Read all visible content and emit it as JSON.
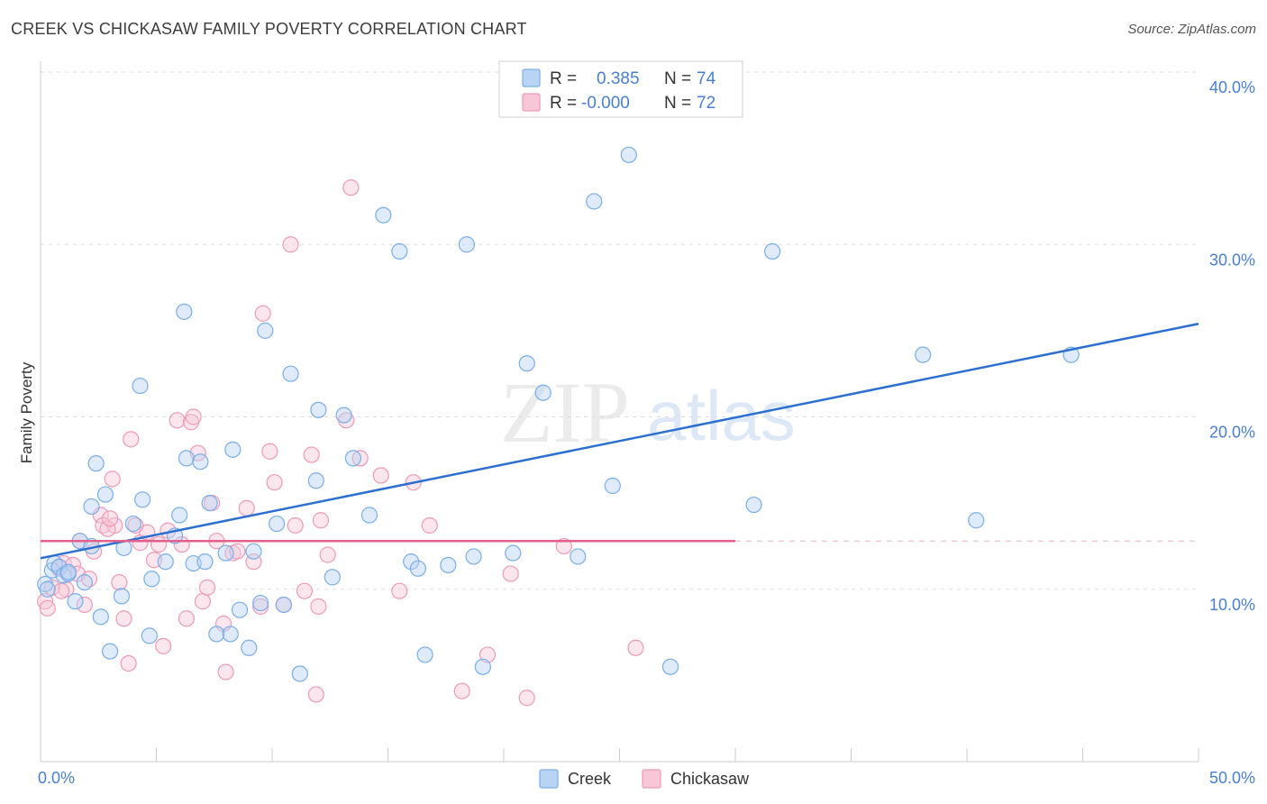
{
  "header": {
    "title": "CREEK VS CHICKASAW FAMILY POVERTY CORRELATION CHART",
    "source": "Source: ZipAtlas.com"
  },
  "watermark": {
    "zip": "ZIP",
    "atlas": "atlas"
  },
  "colors": {
    "creek": "#7aaee8",
    "creek_fill": "#b9d3f3",
    "creek_line": "#2b6fd0",
    "chickasaw": "#ee9ab6",
    "chickasaw_fill": "#f7c7d7",
    "chickasaw_line": "#e2608a",
    "tick": "#4a7fd0",
    "grid": "#dddddd"
  },
  "legend": {
    "creek": {
      "r_label": "R =",
      "r_value": "0.385",
      "n_label": "N =",
      "n_value": "74"
    },
    "chickasaw": {
      "r_label": "R =",
      "r_value": "-0.000",
      "n_label": "N =",
      "n_value": "72"
    }
  },
  "bottom_legend": {
    "creek": "Creek",
    "chickasaw": "Chickasaw"
  },
  "chart_data": {
    "type": "scatter",
    "title": "CREEK VS CHICKASAW FAMILY POVERTY CORRELATION CHART",
    "xlabel": "",
    "ylabel": "Family Poverty",
    "xlim": [
      0,
      50
    ],
    "ylim": [
      0,
      40
    ],
    "x_tick_labels": [
      "0.0%",
      "50.0%"
    ],
    "y_ticks": [
      10,
      20,
      30,
      40
    ],
    "y_tick_labels": [
      "10.0%",
      "20.0%",
      "30.0%",
      "40.0%"
    ],
    "series": [
      {
        "name": "Creek",
        "r": 0.385,
        "n": 74,
        "trend": {
          "x": [
            0,
            50
          ],
          "y": [
            11.8,
            25.4
          ]
        },
        "points": [
          [
            0.2,
            10.3
          ],
          [
            0.3,
            10.0
          ],
          [
            0.5,
            11.1
          ],
          [
            0.6,
            11.5
          ],
          [
            0.8,
            11.3
          ],
          [
            1.0,
            10.8
          ],
          [
            1.2,
            10.9
          ],
          [
            1.5,
            9.3
          ],
          [
            1.7,
            12.8
          ],
          [
            1.9,
            10.4
          ],
          [
            2.2,
            14.8
          ],
          [
            2.6,
            8.4
          ],
          [
            2.8,
            15.5
          ],
          [
            2.4,
            17.3
          ],
          [
            3.0,
            6.4
          ],
          [
            3.5,
            9.6
          ],
          [
            4.0,
            13.8
          ],
          [
            4.4,
            15.2
          ],
          [
            4.7,
            7.3
          ],
          [
            5.4,
            11.6
          ],
          [
            4.3,
            21.8
          ],
          [
            6.2,
            26.1
          ],
          [
            6.0,
            14.3
          ],
          [
            6.3,
            17.6
          ],
          [
            6.6,
            11.5
          ],
          [
            7.1,
            11.6
          ],
          [
            7.6,
            7.4
          ],
          [
            8.2,
            7.4
          ],
          [
            8.3,
            18.1
          ],
          [
            8.6,
            8.8
          ],
          [
            7.3,
            15.0
          ],
          [
            9.0,
            6.6
          ],
          [
            9.5,
            9.2
          ],
          [
            9.7,
            25.0
          ],
          [
            10.2,
            13.8
          ],
          [
            10.5,
            9.1
          ],
          [
            10.8,
            22.5
          ],
          [
            11.2,
            5.1
          ],
          [
            11.9,
            16.3
          ],
          [
            12.6,
            10.7
          ],
          [
            13.1,
            20.1
          ],
          [
            13.5,
            17.6
          ],
          [
            14.2,
            14.3
          ],
          [
            14.8,
            31.7
          ],
          [
            15.5,
            29.6
          ],
          [
            16.0,
            11.6
          ],
          [
            16.3,
            11.2
          ],
          [
            16.6,
            6.2
          ],
          [
            17.6,
            11.4
          ],
          [
            18.4,
            30.0
          ],
          [
            18.7,
            11.9
          ],
          [
            19.1,
            5.5
          ],
          [
            20.4,
            12.1
          ],
          [
            21.0,
            23.1
          ],
          [
            21.7,
            21.4
          ],
          [
            23.2,
            11.9
          ],
          [
            23.9,
            32.5
          ],
          [
            24.7,
            16.0
          ],
          [
            25.4,
            35.2
          ],
          [
            27.2,
            5.5
          ],
          [
            30.8,
            14.9
          ],
          [
            31.6,
            29.6
          ],
          [
            38.1,
            23.6
          ],
          [
            40.4,
            14.0
          ],
          [
            44.5,
            23.6
          ],
          [
            12.0,
            20.4
          ],
          [
            8.0,
            12.1
          ],
          [
            6.9,
            17.4
          ],
          [
            5.8,
            13.1
          ],
          [
            3.6,
            12.4
          ],
          [
            2.2,
            12.5
          ],
          [
            1.2,
            11.0
          ],
          [
            9.2,
            12.2
          ],
          [
            4.8,
            10.6
          ]
        ]
      },
      {
        "name": "Chickasaw",
        "r": -0.0,
        "n": 72,
        "trend": {
          "x": [
            0,
            30
          ],
          "y": [
            12.8,
            12.8
          ]
        },
        "points": [
          [
            0.2,
            9.3
          ],
          [
            0.3,
            8.9
          ],
          [
            0.5,
            10.1
          ],
          [
            0.8,
            11.2
          ],
          [
            1.0,
            11.5
          ],
          [
            1.1,
            10.0
          ],
          [
            1.4,
            11.4
          ],
          [
            1.6,
            10.9
          ],
          [
            1.9,
            9.1
          ],
          [
            2.1,
            10.6
          ],
          [
            2.3,
            12.2
          ],
          [
            2.6,
            14.3
          ],
          [
            2.7,
            13.7
          ],
          [
            3.1,
            16.4
          ],
          [
            3.2,
            13.7
          ],
          [
            3.4,
            10.4
          ],
          [
            3.6,
            8.3
          ],
          [
            3.8,
            5.7
          ],
          [
            3.9,
            18.7
          ],
          [
            4.3,
            12.7
          ],
          [
            4.6,
            13.3
          ],
          [
            4.9,
            11.7
          ],
          [
            5.1,
            12.6
          ],
          [
            5.3,
            6.7
          ],
          [
            5.9,
            19.8
          ],
          [
            6.3,
            8.3
          ],
          [
            6.5,
            19.7
          ],
          [
            6.6,
            20.0
          ],
          [
            6.8,
            17.9
          ],
          [
            7.0,
            9.3
          ],
          [
            7.4,
            15.0
          ],
          [
            7.6,
            12.8
          ],
          [
            7.9,
            8.0
          ],
          [
            8.0,
            5.2
          ],
          [
            8.3,
            12.1
          ],
          [
            8.5,
            12.2
          ],
          [
            8.9,
            14.7
          ],
          [
            9.2,
            11.6
          ],
          [
            9.6,
            26.0
          ],
          [
            9.9,
            18.0
          ],
          [
            10.1,
            16.2
          ],
          [
            10.5,
            9.1
          ],
          [
            10.8,
            30.0
          ],
          [
            11.0,
            13.7
          ],
          [
            11.4,
            9.9
          ],
          [
            11.7,
            17.8
          ],
          [
            11.9,
            3.9
          ],
          [
            12.1,
            14.0
          ],
          [
            12.4,
            12.0
          ],
          [
            13.2,
            19.8
          ],
          [
            13.4,
            33.3
          ],
          [
            13.8,
            17.6
          ],
          [
            14.7,
            16.6
          ],
          [
            15.5,
            9.9
          ],
          [
            16.1,
            16.2
          ],
          [
            16.8,
            13.7
          ],
          [
            18.2,
            4.1
          ],
          [
            19.3,
            6.2
          ],
          [
            20.3,
            10.9
          ],
          [
            21.0,
            3.7
          ],
          [
            22.6,
            12.5
          ],
          [
            25.7,
            6.6
          ],
          [
            5.5,
            13.4
          ],
          [
            4.1,
            13.7
          ],
          [
            7.2,
            10.1
          ],
          [
            2.9,
            13.5
          ],
          [
            1.7,
            12.8
          ],
          [
            6.1,
            12.6
          ],
          [
            3.0,
            14.1
          ],
          [
            0.9,
            9.9
          ],
          [
            12.0,
            9.0
          ],
          [
            9.5,
            9.0
          ]
        ]
      }
    ]
  }
}
